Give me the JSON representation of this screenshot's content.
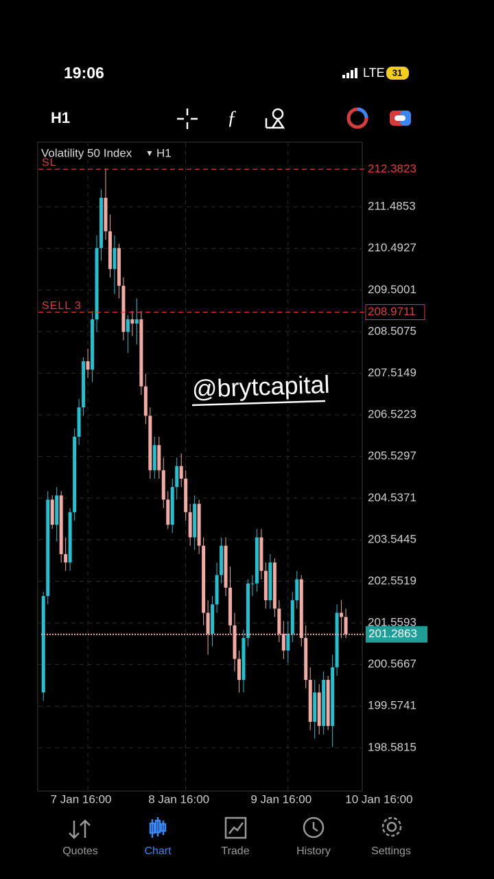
{
  "status_bar": {
    "time": "19:06",
    "network": "LTE",
    "battery": "31"
  },
  "toolbar": {
    "timeframe": "H1"
  },
  "chart_data": {
    "type": "candlestick",
    "symbol": "Volatility 50 Index",
    "timeframe": "H1",
    "up_color": "#22c1d1",
    "down_color": "#f2aaa3",
    "grid": true,
    "open": [
      199.9,
      202.2,
      204.5,
      203.9,
      204.6,
      203.2,
      203.0,
      204.2,
      206.0,
      206.7,
      207.8,
      207.6,
      208.8,
      210.5,
      211.7,
      210.9,
      210.0,
      210.5,
      209.6,
      208.5,
      208.8,
      208.7,
      208.8,
      207.2,
      206.5,
      205.2,
      205.8,
      205.2,
      204.5,
      203.9,
      204.8,
      205.3,
      205.0,
      204.2,
      203.6,
      204.4,
      203.4,
      201.8,
      201.3,
      202.0,
      202.7,
      203.4,
      202.4,
      201.5,
      200.7,
      200.2,
      201.2,
      202.5,
      202.5,
      203.6,
      202.8,
      202.1,
      203.0,
      201.9,
      201.3,
      200.9,
      201.3,
      202.1,
      202.6,
      201.2,
      200.2,
      199.2,
      199.9,
      199.1,
      200.2,
      199.1,
      200.5,
      201.8,
      201.7
    ],
    "high": [
      202.3,
      204.7,
      204.6,
      204.8,
      204.7,
      203.6,
      204.3,
      206.2,
      206.9,
      207.9,
      208.1,
      209.0,
      210.8,
      211.9,
      212.4,
      211.3,
      210.8,
      210.6,
      209.8,
      208.9,
      209.0,
      209.3,
      209.0,
      207.5,
      206.7,
      206.0,
      206.0,
      205.5,
      204.7,
      205.0,
      205.5,
      205.6,
      205.2,
      204.4,
      204.6,
      204.5,
      203.6,
      202.1,
      202.2,
      203.0,
      203.6,
      203.6,
      202.9,
      201.8,
      200.9,
      201.4,
      202.6,
      202.7,
      203.8,
      203.8,
      203.0,
      203.2,
      203.1,
      202.1,
      201.6,
      201.6,
      202.3,
      202.8,
      202.7,
      201.5,
      200.5,
      200.2,
      200.1,
      200.4,
      200.3,
      200.8,
      202.0,
      202.1,
      201.9
    ],
    "low": [
      199.7,
      202.0,
      203.8,
      203.5,
      203.0,
      202.8,
      202.8,
      204.0,
      205.8,
      206.5,
      207.4,
      207.3,
      208.5,
      210.2,
      210.7,
      209.8,
      209.4,
      209.3,
      208.3,
      208.0,
      208.4,
      208.2,
      207.0,
      206.3,
      205.0,
      205.0,
      205.0,
      204.3,
      203.8,
      203.7,
      204.5,
      204.8,
      204.0,
      203.4,
      203.3,
      203.2,
      201.5,
      200.8,
      201.0,
      201.8,
      202.5,
      202.2,
      201.3,
      200.4,
      199.9,
      199.9,
      201.0,
      202.2,
      202.3,
      202.6,
      201.9,
      201.9,
      201.7,
      201.1,
      200.7,
      200.6,
      201.1,
      201.9,
      201.0,
      200.0,
      199.0,
      198.8,
      198.9,
      198.9,
      199.0,
      198.6,
      200.3,
      201.2,
      201.2
    ],
    "close": [
      202.2,
      204.5,
      203.9,
      204.6,
      203.2,
      203.0,
      204.2,
      206.0,
      206.7,
      207.8,
      207.6,
      208.8,
      210.5,
      211.7,
      210.9,
      210.0,
      210.5,
      209.6,
      208.5,
      208.8,
      208.7,
      208.8,
      207.2,
      206.5,
      205.2,
      205.8,
      205.2,
      204.5,
      203.9,
      204.8,
      205.3,
      205.0,
      204.2,
      203.6,
      204.4,
      203.4,
      201.8,
      201.3,
      202.0,
      202.7,
      203.4,
      202.4,
      201.5,
      200.7,
      200.2,
      201.2,
      202.5,
      202.5,
      203.6,
      202.8,
      202.1,
      203.0,
      201.9,
      201.3,
      200.9,
      201.3,
      202.1,
      202.6,
      201.2,
      200.2,
      199.2,
      199.9,
      199.1,
      200.2,
      199.1,
      200.5,
      201.8,
      201.7,
      201.29
    ],
    "xlim": [
      -0.5,
      72
    ],
    "xticks": [
      {
        "value": 10,
        "label": "7 Jan 16:00"
      },
      {
        "value": 32,
        "label": "8 Jan 16:00"
      },
      {
        "value": 55,
        "label": "9 Jan 16:00"
      },
      {
        "value": 77,
        "label": "10 Jan 16:00"
      }
    ],
    "ylim": [
      197.58,
      213.01
    ],
    "yticks": [
      198.5815,
      199.5741,
      200.5667,
      201.5593,
      202.5519,
      203.5445,
      204.5371,
      205.5297,
      206.5223,
      207.5149,
      208.5075,
      209.5001,
      210.4927,
      211.4853
    ],
    "levels": [
      {
        "label": "SL",
        "value": 212.3823,
        "color": "#d8413b",
        "boxed": false
      },
      {
        "label": "SELL 3",
        "value": 208.9711,
        "color": "#d8413b",
        "boxed": true
      }
    ],
    "current_price": 201.2863,
    "current_price_color": "#1f9e98",
    "watermark": "@brytcapital"
  },
  "nav": {
    "active": 1,
    "active_color": "#3a86f5",
    "items": [
      "Quotes",
      "Chart",
      "Trade",
      "History",
      "Settings"
    ]
  }
}
